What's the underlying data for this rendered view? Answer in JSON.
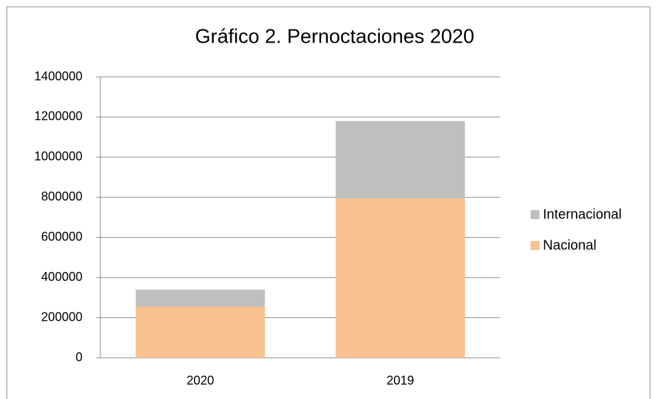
{
  "chart_data": {
    "type": "stacked_bar",
    "title": "Gráfico 2. Pernoctaciones 2020",
    "categories": [
      "2020",
      "2019"
    ],
    "series": [
      {
        "name": "Nacional",
        "color": "#f9c090",
        "values": [
          255000,
          795000
        ]
      },
      {
        "name": "Internacional",
        "color": "#bfbfbf",
        "values": [
          85000,
          385000
        ]
      }
    ],
    "ylim": [
      0,
      1400000
    ],
    "yticks": [
      0,
      200000,
      400000,
      600000,
      800000,
      1000000,
      1200000,
      1400000
    ],
    "grid": true,
    "legend": "right"
  }
}
